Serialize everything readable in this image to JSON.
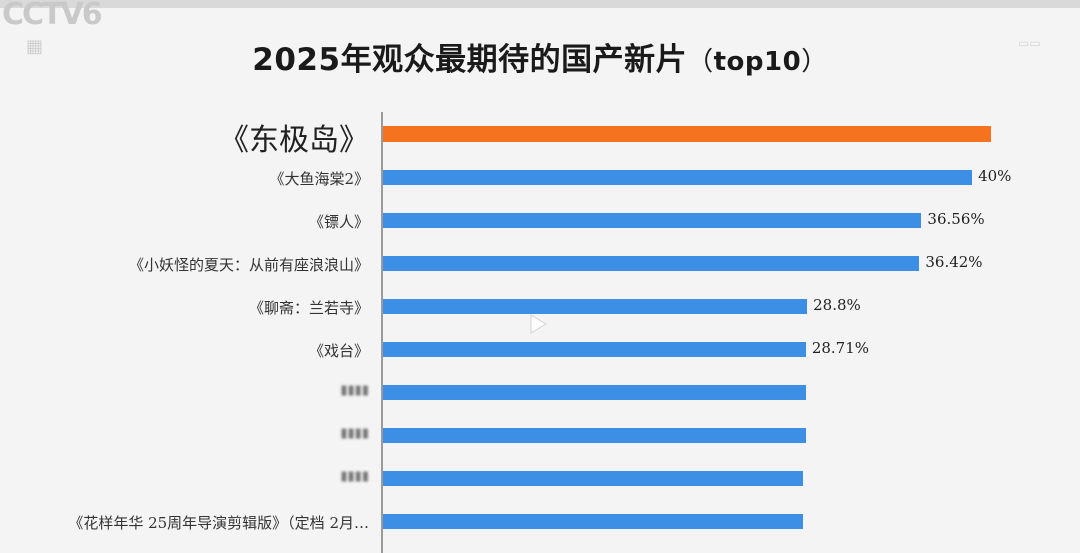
{
  "title": "2025年观众最期待的国产新片",
  "title_paren_open": "（",
  "title_paren_text": "top10",
  "title_paren_close": "）",
  "colors": {
    "highlight": "#f5731e",
    "bar": "#3d8fe6",
    "axis": "#9a9a9a"
  },
  "icons": {
    "center": "play-icon"
  },
  "chart_data": {
    "type": "bar",
    "orientation": "horizontal",
    "categories": [
      "《东极岛》",
      "《大鱼海棠2》",
      "《镖人》",
      "《小妖怪的夏天：从前有座浪浪山》",
      "《聊斋：兰若寺》",
      "《戏台》",
      "",
      "",
      "",
      "《花样年华 25周年导演剪辑版》（定档 2月…"
    ],
    "values": [
      41.3,
      40,
      36.56,
      36.42,
      28.8,
      28.71,
      28.7,
      28.7,
      28.5,
      28.5
    ],
    "value_labels": [
      "",
      "40%",
      "36.56%",
      "36.42%",
      "28.8%",
      "28.71%",
      "",
      "",
      "",
      ""
    ],
    "highlight_index": 0,
    "blurred_label_indices": [
      0,
      6,
      7,
      8
    ],
    "xlim": [
      0,
      44
    ]
  }
}
